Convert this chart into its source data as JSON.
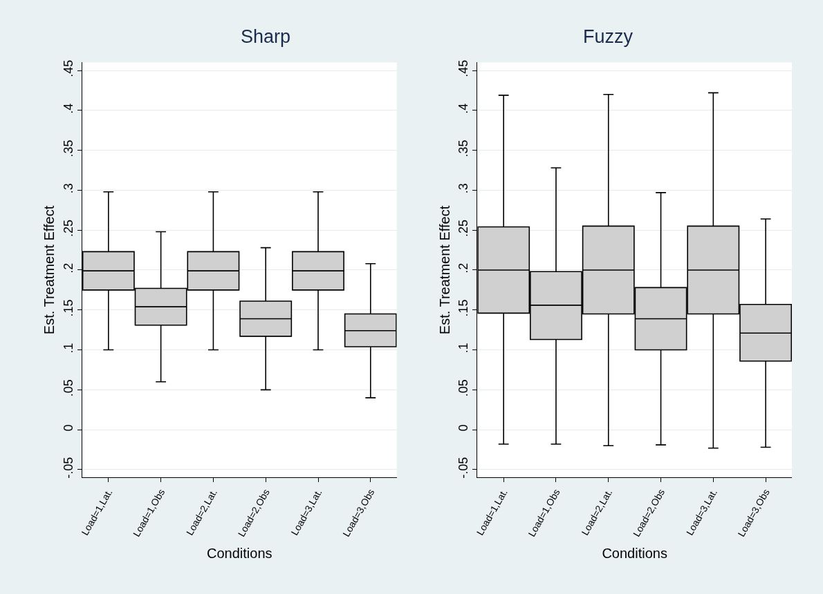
{
  "chart_data": [
    {
      "type": "box",
      "title": "Sharp",
      "xlabel": "Conditions",
      "ylabel": "Est. Treatment Effect",
      "categories": [
        "Load=1,Lat.",
        "Load=1,Obs",
        "Load=2,Lat.",
        "Load=2,Obs",
        "Load=3,Lat.",
        "Load=3,Obs"
      ],
      "color": "#d0d0d0",
      "grid": "y",
      "ylim": [
        -0.06,
        0.46
      ],
      "yticks": [
        {
          "value": -0.05,
          "label": "-.05"
        },
        {
          "value": 0,
          "label": "0"
        },
        {
          "value": 0.05,
          "label": ".05"
        },
        {
          "value": 0.1,
          "label": ".1"
        },
        {
          "value": 0.15,
          "label": ".15"
        },
        {
          "value": 0.2,
          "label": ".2"
        },
        {
          "value": 0.25,
          "label": ".25"
        },
        {
          "value": 0.3,
          "label": ".3"
        },
        {
          "value": 0.35,
          "label": ".35"
        },
        {
          "value": 0.4,
          "label": ".4"
        },
        {
          "value": 0.45,
          "label": ".45"
        }
      ],
      "boxes": [
        {
          "low": 0.1,
          "q1": 0.175,
          "median": 0.199,
          "q3": 0.223,
          "high": 0.298
        },
        {
          "low": 0.06,
          "q1": 0.131,
          "median": 0.154,
          "q3": 0.177,
          "high": 0.248
        },
        {
          "low": 0.1,
          "q1": 0.175,
          "median": 0.199,
          "q3": 0.223,
          "high": 0.298
        },
        {
          "low": 0.05,
          "q1": 0.117,
          "median": 0.139,
          "q3": 0.161,
          "high": 0.228
        },
        {
          "low": 0.1,
          "q1": 0.175,
          "median": 0.199,
          "q3": 0.223,
          "high": 0.298
        },
        {
          "low": 0.04,
          "q1": 0.104,
          "median": 0.124,
          "q3": 0.145,
          "high": 0.208
        }
      ]
    },
    {
      "type": "box",
      "title": "Fuzzy",
      "xlabel": "Conditions",
      "ylabel": "Est. Treatment Effect",
      "categories": [
        "Load=1,Lat.",
        "Load=1,Obs",
        "Load=2,Lat.",
        "Load=2,Obs",
        "Load=3,Lat.",
        "Load=3,Obs"
      ],
      "color": "#d0d0d0",
      "grid": "y",
      "ylim": [
        -0.06,
        0.46
      ],
      "yticks": [
        {
          "value": -0.05,
          "label": "-.05"
        },
        {
          "value": 0,
          "label": "0"
        },
        {
          "value": 0.05,
          "label": ".05"
        },
        {
          "value": 0.1,
          "label": ".1"
        },
        {
          "value": 0.15,
          "label": ".15"
        },
        {
          "value": 0.2,
          "label": ".2"
        },
        {
          "value": 0.25,
          "label": ".25"
        },
        {
          "value": 0.3,
          "label": ".3"
        },
        {
          "value": 0.35,
          "label": ".35"
        },
        {
          "value": 0.4,
          "label": ".4"
        },
        {
          "value": 0.45,
          "label": ".45"
        }
      ],
      "boxes": [
        {
          "low": -0.018,
          "q1": 0.146,
          "median": 0.2,
          "q3": 0.254,
          "high": 0.419
        },
        {
          "low": -0.018,
          "q1": 0.113,
          "median": 0.156,
          "q3": 0.198,
          "high": 0.328
        },
        {
          "low": -0.02,
          "q1": 0.145,
          "median": 0.2,
          "q3": 0.255,
          "high": 0.42
        },
        {
          "low": -0.019,
          "q1": 0.1,
          "median": 0.139,
          "q3": 0.178,
          "high": 0.297
        },
        {
          "low": -0.023,
          "q1": 0.145,
          "median": 0.2,
          "q3": 0.255,
          "high": 0.422
        },
        {
          "low": -0.022,
          "q1": 0.086,
          "median": 0.121,
          "q3": 0.157,
          "high": 0.264
        }
      ]
    }
  ]
}
